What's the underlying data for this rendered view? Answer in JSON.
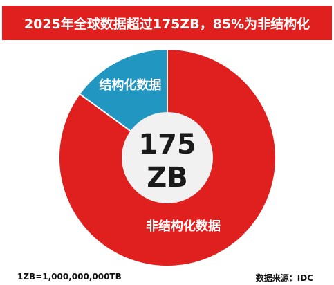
{
  "header": {
    "title": "2025年全球数据超过175ZB，85%为非结构化"
  },
  "chart_data": {
    "type": "pie",
    "variant": "donut",
    "center_value": "175",
    "center_unit": "ZB",
    "slices": [
      {
        "label": "非结构化数据",
        "value": 85,
        "color": "#e01f1f"
      },
      {
        "label": "结构化数据",
        "value": 15,
        "color": "#2196c0"
      }
    ],
    "legend": "none"
  },
  "footer": {
    "note": "1ZB=1,000,000,000TB",
    "source": "数据来源：IDC"
  },
  "colors": {
    "accent": "#e01f1f",
    "secondary": "#2196c0",
    "center": "#f1f1f1"
  }
}
